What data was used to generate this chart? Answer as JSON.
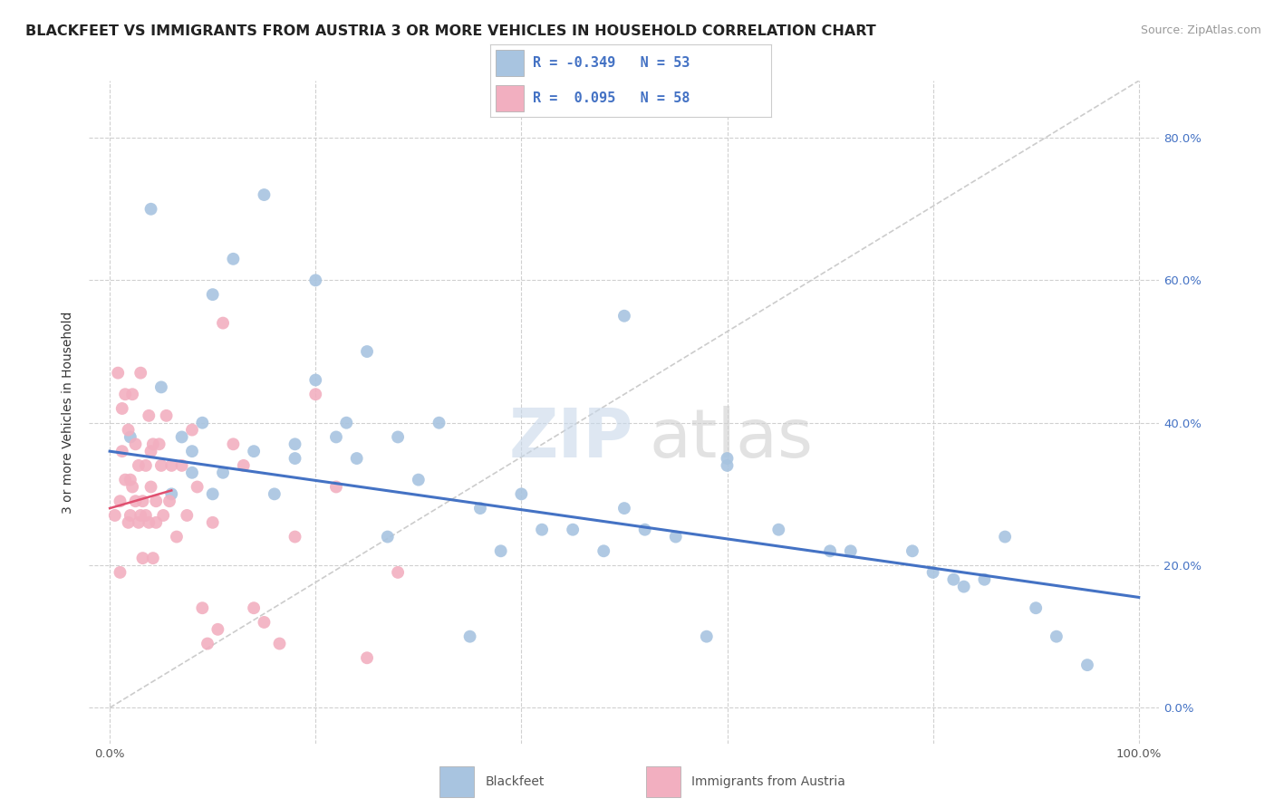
{
  "title": "BLACKFEET VS IMMIGRANTS FROM AUSTRIA 3 OR MORE VEHICLES IN HOUSEHOLD CORRELATION CHART",
  "source": "Source: ZipAtlas.com",
  "ylabel": "3 or more Vehicles in Household",
  "xlim": [
    -0.02,
    1.02
  ],
  "ylim": [
    -0.05,
    0.88
  ],
  "xticks": [
    0.0,
    0.2,
    0.4,
    0.6,
    0.8,
    1.0
  ],
  "xticklabels": [
    "0.0%",
    "",
    "",
    "",
    "",
    "100.0%"
  ],
  "yticks": [
    0.0,
    0.2,
    0.4,
    0.6,
    0.8
  ],
  "yticklabels_right": [
    "0.0%",
    "20.0%",
    "40.0%",
    "60.0%",
    "80.0%"
  ],
  "color_blue": "#a8c4e0",
  "color_pink": "#f2afc0",
  "line_blue": "#4472C4",
  "line_pink": "#E05070",
  "ref_line_color": "#cccccc",
  "legend_r1": "-0.349",
  "legend_n1": "53",
  "legend_r2": "0.095",
  "legend_n2": "58",
  "blue_scatter_x": [
    0.02,
    0.04,
    0.05,
    0.06,
    0.07,
    0.08,
    0.09,
    0.1,
    0.11,
    0.12,
    0.14,
    0.16,
    0.18,
    0.2,
    0.22,
    0.23,
    0.25,
    0.27,
    0.3,
    0.32,
    0.36,
    0.38,
    0.4,
    0.45,
    0.5,
    0.52,
    0.55,
    0.58,
    0.6,
    0.65,
    0.7,
    0.72,
    0.78,
    0.82,
    0.85,
    0.9,
    0.95,
    0.08,
    0.1,
    0.15,
    0.18,
    0.2,
    0.24,
    0.28,
    0.35,
    0.42,
    0.48,
    0.6,
    0.8,
    0.83,
    0.87,
    0.92,
    0.5
  ],
  "blue_scatter_y": [
    0.38,
    0.7,
    0.45,
    0.3,
    0.38,
    0.36,
    0.4,
    0.3,
    0.33,
    0.63,
    0.36,
    0.3,
    0.35,
    0.6,
    0.38,
    0.4,
    0.5,
    0.24,
    0.32,
    0.4,
    0.28,
    0.22,
    0.3,
    0.25,
    0.55,
    0.25,
    0.24,
    0.1,
    0.34,
    0.25,
    0.22,
    0.22,
    0.22,
    0.18,
    0.18,
    0.14,
    0.06,
    0.33,
    0.58,
    0.72,
    0.37,
    0.46,
    0.35,
    0.38,
    0.1,
    0.25,
    0.22,
    0.35,
    0.19,
    0.17,
    0.24,
    0.1,
    0.28
  ],
  "pink_scatter_x": [
    0.005,
    0.008,
    0.01,
    0.01,
    0.012,
    0.012,
    0.015,
    0.015,
    0.018,
    0.018,
    0.02,
    0.02,
    0.022,
    0.022,
    0.025,
    0.025,
    0.028,
    0.028,
    0.03,
    0.03,
    0.032,
    0.032,
    0.035,
    0.035,
    0.038,
    0.038,
    0.04,
    0.04,
    0.042,
    0.042,
    0.045,
    0.045,
    0.048,
    0.05,
    0.052,
    0.055,
    0.058,
    0.06,
    0.065,
    0.07,
    0.075,
    0.08,
    0.085,
    0.09,
    0.095,
    0.1,
    0.105,
    0.11,
    0.12,
    0.13,
    0.14,
    0.15,
    0.165,
    0.18,
    0.2,
    0.22,
    0.25,
    0.28
  ],
  "pink_scatter_y": [
    0.27,
    0.47,
    0.29,
    0.19,
    0.42,
    0.36,
    0.32,
    0.44,
    0.26,
    0.39,
    0.27,
    0.32,
    0.31,
    0.44,
    0.29,
    0.37,
    0.34,
    0.26,
    0.27,
    0.47,
    0.29,
    0.21,
    0.34,
    0.27,
    0.41,
    0.26,
    0.31,
    0.36,
    0.37,
    0.21,
    0.26,
    0.29,
    0.37,
    0.34,
    0.27,
    0.41,
    0.29,
    0.34,
    0.24,
    0.34,
    0.27,
    0.39,
    0.31,
    0.14,
    0.09,
    0.26,
    0.11,
    0.54,
    0.37,
    0.34,
    0.14,
    0.12,
    0.09,
    0.24,
    0.44,
    0.31,
    0.07,
    0.19
  ],
  "blue_line_x": [
    0.0,
    1.0
  ],
  "blue_line_y": [
    0.36,
    0.155
  ],
  "pink_line_x": [
    0.0,
    0.06
  ],
  "pink_line_y": [
    0.28,
    0.305
  ],
  "ref_line_x": [
    0.0,
    1.0
  ],
  "ref_line_y": [
    0.0,
    0.88
  ],
  "background_color": "#ffffff",
  "grid_color": "#d0d0d0",
  "title_fontsize": 11.5,
  "source_fontsize": 9,
  "axis_fontsize": 9.5,
  "ylabel_fontsize": 10
}
